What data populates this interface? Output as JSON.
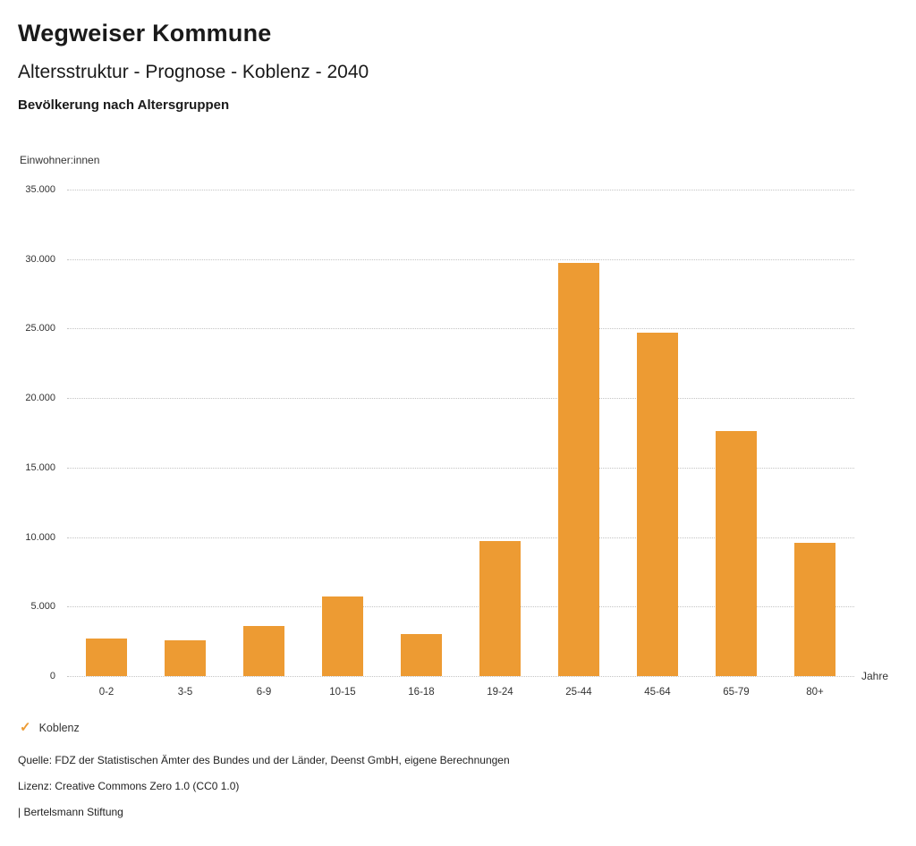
{
  "header": {
    "app_title": "Wegweiser Kommune",
    "title": "Altersstruktur - Prognose - Koblenz - 2040",
    "subtitle": "Bevölkerung nach Altersgruppen"
  },
  "chart_data": {
    "type": "bar",
    "title": "Bevölkerung nach Altersgruppen",
    "y_axis_title": "Einwohner:innen",
    "x_axis_title": "Jahre",
    "categories": [
      "0-2",
      "3-5",
      "6-9",
      "10-15",
      "16-18",
      "19-24",
      "25-44",
      "45-64",
      "65-79",
      "80+"
    ],
    "series": [
      {
        "name": "Koblenz",
        "values": [
          2700,
          2600,
          3600,
          5700,
          3000,
          9700,
          29700,
          24700,
          17600,
          9600
        ]
      }
    ],
    "ylim": [
      0,
      35000
    ],
    "y_ticks": [
      {
        "value": 0,
        "label": "0"
      },
      {
        "value": 5000,
        "label": "5.000"
      },
      {
        "value": 10000,
        "label": "10.000"
      },
      {
        "value": 15000,
        "label": "15.000"
      },
      {
        "value": 20000,
        "label": "20.000"
      },
      {
        "value": 25000,
        "label": "25.000"
      },
      {
        "value": 30000,
        "label": "30.000"
      },
      {
        "value": 35000,
        "label": "35.000"
      }
    ],
    "grid": "horizontal-dotted",
    "legend_position": "bottom-left"
  },
  "legend": {
    "check_icon": "✓",
    "label": "Koblenz"
  },
  "footer": {
    "source": "Quelle: FDZ der Statistischen Ämter des Bundes und der Länder, Deenst GmbH, eigene Berechnungen",
    "license": "Lizenz: Creative Commons Zero 1.0 (CC0 1.0)",
    "attribution": "| Bertelsmann Stiftung"
  },
  "colors": {
    "bar": "#ED9B33",
    "check": "#ED9B33",
    "gridline": "#c4c4c4"
  }
}
